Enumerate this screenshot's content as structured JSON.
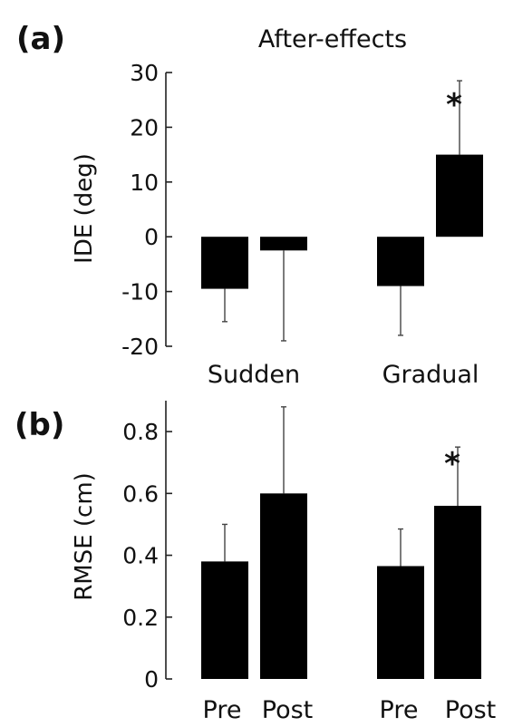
{
  "chart_data": [
    {
      "panel": "(a)",
      "type": "bar",
      "title": "After-effects",
      "ylabel": "IDE (deg)",
      "xlabel": "",
      "ylim": [
        -20,
        30
      ],
      "yticks": [
        -20,
        -10,
        0,
        10,
        20,
        30
      ],
      "ytick_labels": [
        "-20",
        "-10",
        "0",
        "10",
        "20",
        "30"
      ],
      "groups": [
        "Sudden",
        "Gradual"
      ],
      "bars": [
        {
          "group": "Sudden",
          "value": -9.5,
          "error": 6
        },
        {
          "group": "Sudden",
          "value": -2.5,
          "error": 16.5
        },
        {
          "group": "Gradual",
          "value": -9,
          "error": 9
        },
        {
          "group": "Gradual",
          "value": 15,
          "error": 13.5,
          "significance": "*"
        }
      ],
      "grid": false,
      "color": "#000000"
    },
    {
      "panel": "(b)",
      "type": "bar",
      "title": "",
      "ylabel": "RMSE (cm)",
      "xlabel": "",
      "ylim": [
        0,
        0.9
      ],
      "yticks": [
        0,
        0.2,
        0.4,
        0.6,
        0.8
      ],
      "ytick_labels": [
        "0",
        "0.2",
        "0.4",
        "0.6",
        "0.8"
      ],
      "categories": [
        "Pre",
        "Post",
        "Pre",
        "Post"
      ],
      "bars": [
        {
          "category": "Pre",
          "value": 0.38,
          "error": 0.12
        },
        {
          "category": "Post",
          "value": 0.6,
          "error": 0.28
        },
        {
          "category": "Pre",
          "value": 0.365,
          "error": 0.12
        },
        {
          "category": "Post",
          "value": 0.56,
          "error": 0.19,
          "significance": "*"
        }
      ],
      "grid": false,
      "color": "#000000"
    }
  ]
}
